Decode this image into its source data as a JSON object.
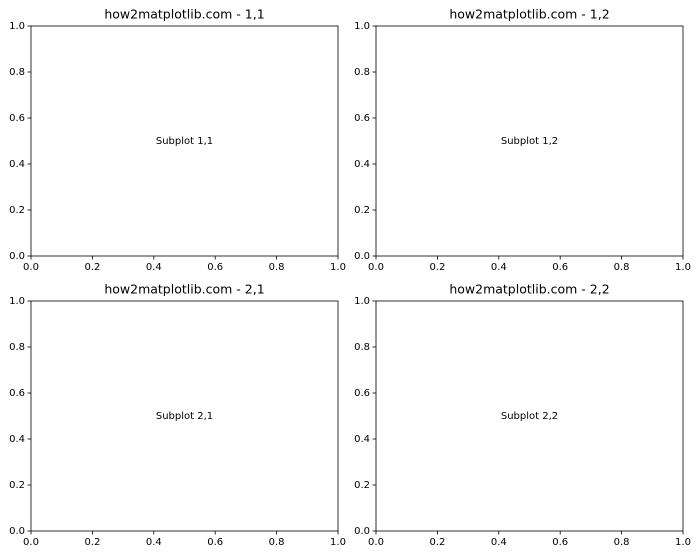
{
  "chart_data": [
    {
      "type": "text",
      "title": "how2matplotlib.com - 1,1",
      "annotation": {
        "text": "Subplot 1,1",
        "x": 0.5,
        "y": 0.5
      },
      "xlim": [
        0,
        1
      ],
      "ylim": [
        0,
        1
      ],
      "xticks": [
        {
          "value": 0,
          "label": "0.0"
        },
        0.2,
        0.4,
        0.6,
        0.8,
        {
          "value": 1,
          "label": "1.0"
        }
      ],
      "yticks": [
        {
          "value": 0,
          "label": "0.0"
        },
        0.2,
        0.4,
        0.6,
        0.8,
        {
          "value": 1,
          "label": "1.0"
        }
      ]
    },
    {
      "type": "text",
      "title": "how2matplotlib.com - 1,2",
      "annotation": {
        "text": "Subplot 1,2",
        "x": 0.5,
        "y": 0.5
      },
      "xlim": [
        0,
        1
      ],
      "ylim": [
        0,
        1
      ],
      "xticks": [
        {
          "value": 0,
          "label": "0.0"
        },
        0.2,
        0.4,
        0.6,
        0.8,
        {
          "value": 1,
          "label": "1.0"
        }
      ],
      "yticks": [
        {
          "value": 0,
          "label": "0.0"
        },
        0.2,
        0.4,
        0.6,
        0.8,
        {
          "value": 1,
          "label": "1.0"
        }
      ]
    },
    {
      "type": "text",
      "title": "how2matplotlib.com - 2,1",
      "annotation": {
        "text": "Subplot 2,1",
        "x": 0.5,
        "y": 0.5
      },
      "xlim": [
        0,
        1
      ],
      "ylim": [
        0,
        1
      ],
      "xticks": [
        {
          "value": 0,
          "label": "0.0"
        },
        0.2,
        0.4,
        0.6,
        0.8,
        {
          "value": 1,
          "label": "1.0"
        }
      ],
      "yticks": [
        {
          "value": 0,
          "label": "0.0"
        },
        0.2,
        0.4,
        0.6,
        0.8,
        {
          "value": 1,
          "label": "1.0"
        }
      ]
    },
    {
      "type": "text",
      "title": "how2matplotlib.com - 2,2",
      "annotation": {
        "text": "Subplot 2,2",
        "x": 0.5,
        "y": 0.5
      },
      "xlim": [
        0,
        1
      ],
      "ylim": [
        0,
        1
      ],
      "xticks": [
        {
          "value": 0,
          "label": "0.0"
        },
        0.2,
        0.4,
        0.6,
        0.8,
        {
          "value": 1,
          "label": "1.0"
        }
      ],
      "yticks": [
        {
          "value": 0,
          "label": "0.0"
        },
        0.2,
        0.4,
        0.6,
        0.8,
        {
          "value": 1,
          "label": "1.0"
        }
      ]
    }
  ]
}
